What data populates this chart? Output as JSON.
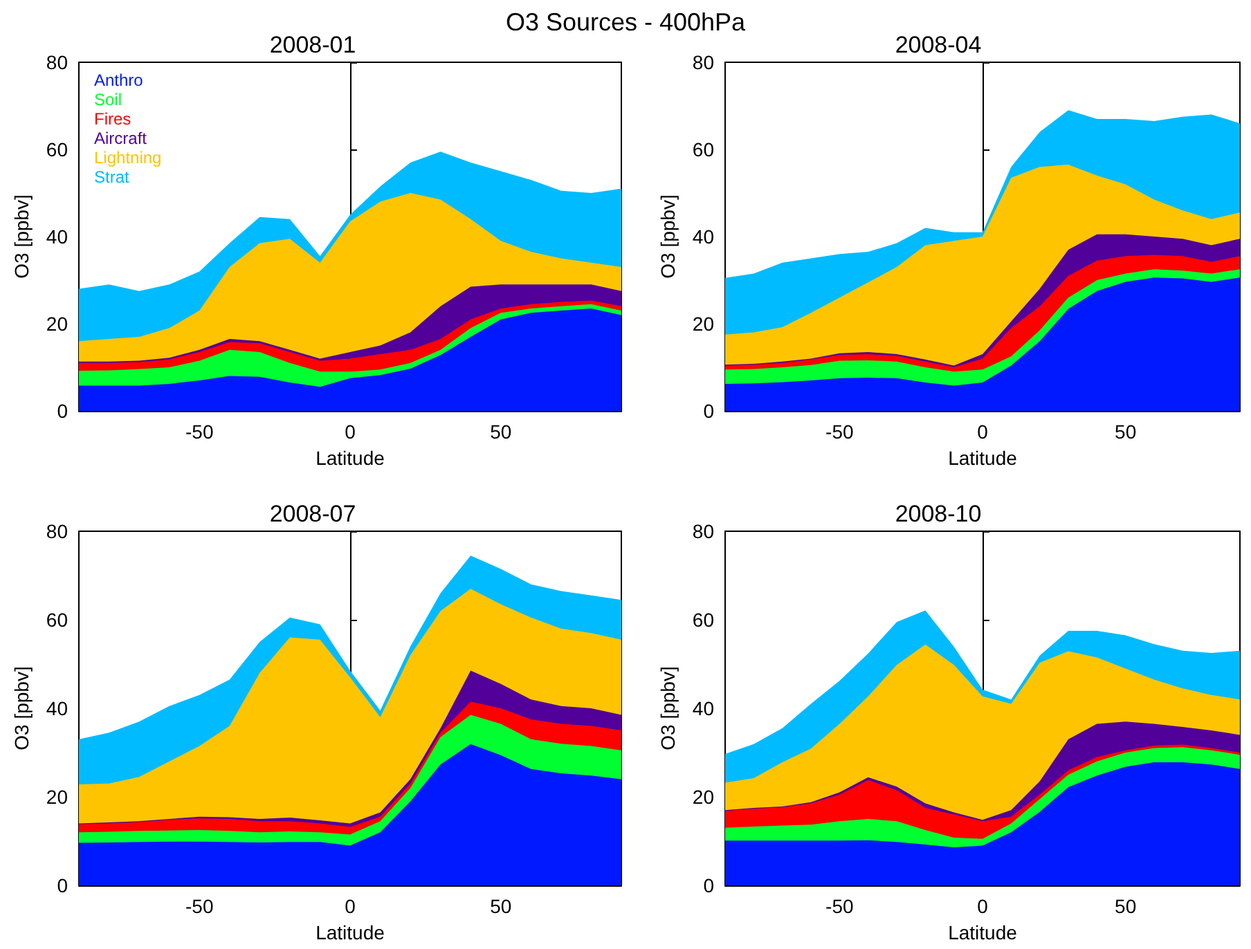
{
  "chart_data": [
    {
      "type": "area",
      "title": "2008-01",
      "annotations": [
        "O3 Sources - 400hPa"
      ],
      "xlabel": "Latitude",
      "ylabel": "O3 [ppbv]",
      "stacked": true,
      "legend": "top left",
      "xlim": [
        -90,
        90
      ],
      "xticks": [
        -50,
        0,
        50
      ],
      "ylim": [
        0,
        80
      ],
      "yticks": [
        0,
        20,
        40,
        60,
        80
      ],
      "x": [
        -90,
        -80,
        -70,
        -60,
        -50,
        -40,
        -30,
        -20,
        -10,
        0,
        10,
        20,
        30,
        40,
        50,
        60,
        70,
        80,
        90
      ],
      "series": [
        {
          "name": "Anthro",
          "color": "#0019ff",
          "values": [
            5.8,
            5.8,
            5.8,
            6.2,
            7,
            8,
            7.8,
            6.5,
            5.5,
            7.5,
            8.2,
            9.7,
            12.8,
            17,
            21,
            22.5,
            23,
            23.5,
            22
          ]
        },
        {
          "name": "Soil",
          "color": "#00ff30",
          "values": [
            3.4,
            3.5,
            3.8,
            3.8,
            4.5,
            6,
            5.7,
            4.5,
            3.5,
            1.5,
            1.3,
            1.3,
            1.2,
            2,
            1.5,
            1,
            1,
            1,
            1
          ]
        },
        {
          "name": "Fires",
          "color": "#ff0000",
          "values": [
            1.8,
            1.7,
            1.6,
            1.8,
            2,
            1.8,
            2,
            2.5,
            2.5,
            3,
            3.5,
            3,
            2.5,
            2,
            1,
            1,
            1,
            0.8,
            1
          ]
        },
        {
          "name": "Aircraft",
          "color": "#52009a",
          "values": [
            0.3,
            0.3,
            0.3,
            0.4,
            0.5,
            0.7,
            0.5,
            0.5,
            0.5,
            1.5,
            2,
            4,
            7.5,
            7.5,
            5.5,
            4.5,
            4,
            3.7,
            3.5
          ]
        },
        {
          "name": "Lightning",
          "color": "#ffc400",
          "values": [
            4.7,
            5.2,
            5.5,
            6.8,
            9,
            16.5,
            22.5,
            25.5,
            22,
            30,
            33,
            32,
            24.5,
            15.5,
            10,
            7.5,
            6,
            5,
            5.5
          ]
        },
        {
          "name": "Strat",
          "color": "#00bbff",
          "values": [
            12,
            12.5,
            10.5,
            10,
            9,
            5.5,
            6,
            4.5,
            1.5,
            1.5,
            3.5,
            7,
            11,
            13,
            16,
            16.5,
            15.5,
            16,
            18
          ]
        }
      ]
    },
    {
      "type": "area",
      "title": "2008-04",
      "xlabel": "Latitude",
      "ylabel": "O3 [ppbv]",
      "stacked": true,
      "xlim": [
        -90,
        90
      ],
      "xticks": [
        -50,
        0,
        50
      ],
      "ylim": [
        0,
        80
      ],
      "yticks": [
        0,
        20,
        40,
        60,
        80
      ],
      "x": [
        -90,
        -80,
        -70,
        -60,
        -50,
        -40,
        -30,
        -20,
        -10,
        0,
        10,
        20,
        30,
        40,
        50,
        60,
        70,
        80,
        90
      ],
      "series": [
        {
          "color": "#0019ff",
          "values": [
            6.2,
            6.3,
            6.6,
            7,
            7.5,
            7.6,
            7.5,
            6.5,
            5.8,
            6.5,
            10.4,
            16,
            23.4,
            27.5,
            29.6,
            30.6,
            30.4,
            29.6,
            30.6
          ]
        },
        {
          "color": "#00ff30",
          "values": [
            3.3,
            3.3,
            3.4,
            3.5,
            4,
            4,
            3.8,
            3.5,
            3.2,
            3,
            2.1,
            2.5,
            2.6,
            2.5,
            1.9,
            1.9,
            1.8,
            1.9,
            1.9
          ]
        },
        {
          "color": "#ff0000",
          "values": [
            0.8,
            1,
            1,
            1.3,
            1.3,
            1.4,
            1.3,
            1.3,
            1,
            2.5,
            6.5,
            5.5,
            5,
            4.5,
            4,
            3.3,
            3.3,
            2.7,
            3
          ]
        },
        {
          "color": "#52009a",
          "values": [
            0.3,
            0.2,
            0.3,
            0.2,
            0.4,
            0.5,
            0.4,
            0.5,
            0.4,
            1,
            1.5,
            4,
            6,
            6,
            5,
            4.2,
            4,
            3.8,
            4
          ]
        },
        {
          "color": "#ffc400",
          "values": [
            6.9,
            7.2,
            7.9,
            10.5,
            12.8,
            16,
            20,
            26.2,
            28.6,
            27,
            33,
            28,
            19.5,
            13.5,
            11.5,
            8.5,
            6.5,
            6,
            6
          ]
        },
        {
          "color": "#00bbff",
          "values": [
            13,
            13.5,
            14.8,
            12.5,
            10,
            7,
            5.5,
            4,
            2,
            1,
            2.5,
            8,
            12.5,
            13,
            15,
            18,
            21.5,
            24,
            20.5
          ]
        }
      ]
    },
    {
      "type": "area",
      "title": "2008-07",
      "xlabel": "Latitude",
      "ylabel": "O3 [ppbv]",
      "stacked": true,
      "xlim": [
        -90,
        90
      ],
      "xticks": [
        -50,
        0,
        50
      ],
      "ylim": [
        0,
        80
      ],
      "yticks": [
        0,
        20,
        40,
        60,
        80
      ],
      "x": [
        -90,
        -80,
        -70,
        -60,
        -50,
        -40,
        -30,
        -20,
        -10,
        0,
        10,
        20,
        30,
        40,
        50,
        60,
        70,
        80,
        90
      ],
      "series": [
        {
          "color": "#0019ff",
          "values": [
            9.6,
            9.7,
            9.8,
            9.9,
            9.9,
            9.8,
            9.7,
            9.8,
            9.8,
            9,
            12,
            19,
            27.3,
            31.9,
            29.4,
            26.3,
            25.3,
            24.8,
            24
          ]
        },
        {
          "color": "#00ff30",
          "values": [
            2.4,
            2.4,
            2.5,
            2.5,
            2.6,
            2.5,
            2.3,
            2.4,
            2.2,
            2.5,
            2.5,
            3,
            6.2,
            6.6,
            7.1,
            6.7,
            6.7,
            6.7,
            6.5
          ]
        },
        {
          "color": "#ff0000",
          "values": [
            1.8,
            1.9,
            2,
            2.4,
            2.6,
            2.7,
            2.5,
            2.3,
            2,
            1.7,
            1,
            1,
            1,
            3,
            3.5,
            4.5,
            4.5,
            4.5,
            4.5
          ]
        },
        {
          "color": "#52009a",
          "values": [
            0.2,
            0.2,
            0.2,
            0.2,
            0.4,
            0.4,
            0.5,
            0.8,
            0.7,
            0.8,
            1,
            1,
            1,
            7,
            5.5,
            4.5,
            4,
            4,
            3.5
          ]
        },
        {
          "color": "#ffc400",
          "values": [
            8.8,
            8.8,
            10,
            13,
            16,
            20.6,
            33,
            40.7,
            40.8,
            33,
            21.5,
            28,
            26.5,
            18.5,
            18,
            18.5,
            17.5,
            17,
            17
          ]
        },
        {
          "color": "#00bbff",
          "values": [
            10.2,
            11.5,
            12.5,
            12.5,
            11.5,
            10.5,
            7,
            4.5,
            3.5,
            1.5,
            1.5,
            2,
            4,
            7.5,
            8,
            7.5,
            8.5,
            8.5,
            9
          ]
        }
      ]
    },
    {
      "type": "area",
      "title": "2008-10",
      "xlabel": "Latitude",
      "ylabel": "O3 [ppbv]",
      "stacked": true,
      "xlim": [
        -90,
        90
      ],
      "xticks": [
        -50,
        0,
        50
      ],
      "ylim": [
        0,
        80
      ],
      "yticks": [
        0,
        20,
        40,
        60,
        80
      ],
      "x": [
        -90,
        -80,
        -70,
        -60,
        -50,
        -40,
        -30,
        -20,
        -10,
        0,
        10,
        20,
        30,
        40,
        50,
        60,
        70,
        80,
        90
      ],
      "series": [
        {
          "color": "#0019ff",
          "values": [
            10.1,
            10.1,
            10.1,
            10.1,
            10.1,
            10.2,
            9.8,
            9.2,
            8.6,
            9,
            12,
            16.6,
            22.2,
            24.8,
            26.8,
            27.8,
            27.8,
            27.3,
            26.3
          ]
        },
        {
          "color": "#00ff30",
          "values": [
            2.9,
            3.2,
            3.4,
            3.6,
            4.4,
            4.8,
            4.7,
            3.3,
            2.2,
            1.5,
            2,
            2.9,
            2.8,
            3.2,
            3.2,
            3.2,
            3.4,
            3.2,
            3.2
          ]
        },
        {
          "color": "#ff0000",
          "values": [
            3.8,
            4,
            4.1,
            4.8,
            6,
            8.8,
            7,
            5,
            5.2,
            4,
            1.5,
            1,
            1,
            1,
            0.5,
            0.6,
            0.6,
            0.5,
            0.5
          ]
        },
        {
          "color": "#52009a",
          "values": [
            0.2,
            0.2,
            0.2,
            0.3,
            0.5,
            0.6,
            0.8,
            1,
            0.5,
            0.3,
            1.5,
            3,
            7,
            7.5,
            6.5,
            4.9,
            4,
            4,
            4
          ]
        },
        {
          "color": "#ffc400",
          "values": [
            6.2,
            6.7,
            10,
            12.1,
            15.5,
            18.3,
            27.5,
            35.9,
            33.3,
            27.9,
            24,
            26.8,
            19.9,
            15,
            12,
            10,
            8.7,
            8,
            8
          ]
        },
        {
          "color": "#00bbff",
          "values": [
            6.5,
            7.7,
            7.7,
            10.1,
            9.7,
            9.7,
            9.7,
            7.7,
            4.1,
            1.5,
            1,
            1.6,
            4.6,
            6,
            7.5,
            8,
            8.5,
            9.5,
            11
          ]
        }
      ]
    }
  ]
}
